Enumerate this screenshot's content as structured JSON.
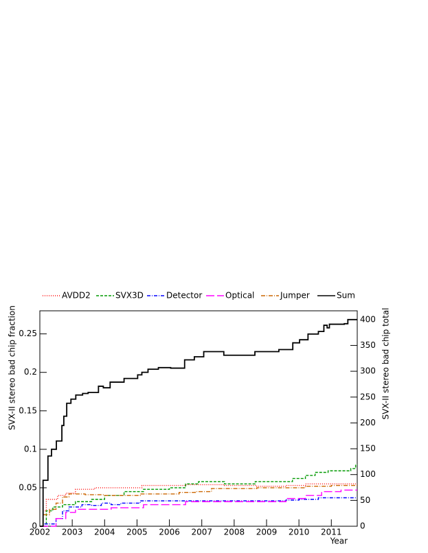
{
  "chart_data": {
    "type": "step",
    "xlabel": "Year",
    "ylabel": "SVX-II stereo bad chip fraction",
    "y2label": "SVX-II stereo bad chip total",
    "xlim": [
      2002,
      2011.8
    ],
    "xticks": [
      2002,
      2003,
      2004,
      2005,
      2006,
      2007,
      2008,
      2009,
      2010,
      2011
    ],
    "ylim": [
      0,
      0.28
    ],
    "yticks": [
      0,
      0.05,
      0.1,
      0.15,
      0.2,
      0.25
    ],
    "y2lim": [
      0,
      417
    ],
    "y2ticks": [
      0,
      50,
      100,
      150,
      200,
      250,
      300,
      350,
      400
    ],
    "series": [
      {
        "name": "AVDD2",
        "color": "#ff0000",
        "dash": "1,2",
        "x": [
          2002,
          2002.1,
          2002.2,
          2002.55,
          2002.8,
          2003.1,
          2003.7,
          2005.15,
          2006.5,
          2007.7,
          2008.7,
          2009.6,
          2010.2,
          2011.8
        ],
        "values": [
          0,
          0.02,
          0.035,
          0.04,
          0.043,
          0.048,
          0.05,
          0.053,
          0.054,
          0.053,
          0.052,
          0.053,
          0.055,
          0.055
        ]
      },
      {
        "name": "SVX3D",
        "color": "#009900",
        "dash": "4,2",
        "x": [
          2002,
          2002.2,
          2002.4,
          2002.7,
          2003.1,
          2003.6,
          2004.0,
          2004.6,
          2005.2,
          2006.0,
          2006.5,
          2006.9,
          2007.7,
          2008.65,
          2009.8,
          2010.2,
          2010.5,
          2010.9,
          2011.6,
          2011.75,
          2011.8
        ],
        "values": [
          0,
          0.02,
          0.025,
          0.028,
          0.032,
          0.035,
          0.04,
          0.045,
          0.048,
          0.05,
          0.055,
          0.058,
          0.055,
          0.058,
          0.062,
          0.066,
          0.07,
          0.072,
          0.075,
          0.08,
          0.08
        ]
      },
      {
        "name": "Detector",
        "color": "#0000ff",
        "dash": "5,2,1,2",
        "x": [
          2002,
          2002.1,
          2002.5,
          2002.7,
          2002.9,
          2003.3,
          2003.6,
          2003.9,
          2004.2,
          2004.5,
          2005.1,
          2007.0,
          2009.6,
          2010.0,
          2010.6,
          2011.8
        ],
        "values": [
          0,
          0.003,
          0.01,
          0.02,
          0.025,
          0.028,
          0.027,
          0.03,
          0.028,
          0.03,
          0.033,
          0.033,
          0.034,
          0.035,
          0.037,
          0.037
        ]
      },
      {
        "name": "Optical",
        "color": "#ff00ff",
        "dash": "12,4",
        "x": [
          2002,
          2002.5,
          2002.8,
          2003.1,
          2004.2,
          2005.2,
          2006.5,
          2008.0,
          2009.6,
          2010.2,
          2010.7,
          2011.3,
          2011.8
        ],
        "values": [
          0,
          0.01,
          0.018,
          0.022,
          0.024,
          0.028,
          0.032,
          0.032,
          0.036,
          0.04,
          0.045,
          0.047,
          0.047
        ]
      },
      {
        "name": "Jumper",
        "color": "#cc6600",
        "dash": "6,2,1,2",
        "x": [
          2002,
          2002.1,
          2002.3,
          2002.5,
          2002.7,
          2002.9,
          2003.4,
          2004.0,
          2005.1,
          2006.3,
          2006.8,
          2007.3,
          2008.7,
          2010.2,
          2011.0,
          2011.8
        ],
        "values": [
          0,
          0.015,
          0.022,
          0.03,
          0.038,
          0.042,
          0.041,
          0.04,
          0.042,
          0.044,
          0.045,
          0.049,
          0.05,
          0.052,
          0.053,
          0.053
        ]
      },
      {
        "name": "Sum",
        "color": "#000000",
        "dash": "",
        "axis": "y2",
        "x": [
          2002,
          2002.1,
          2002.25,
          2002.36,
          2002.51,
          2002.68,
          2002.74,
          2002.83,
          2002.96,
          2003.11,
          2003.32,
          2003.49,
          2003.81,
          2003.96,
          2004.17,
          2004.6,
          2005.02,
          2005.15,
          2005.34,
          2005.66,
          2006.04,
          2006.47,
          2006.77,
          2007.06,
          2007.68,
          2008.64,
          2009.38,
          2009.81,
          2010.02,
          2010.28,
          2010.6,
          2010.77,
          2010.87,
          2010.94,
          2011.4,
          2011.51,
          2011.8
        ],
        "values": [
          0,
          89,
          136,
          149,
          165,
          195,
          213,
          238,
          246,
          254,
          257,
          259,
          271,
          268,
          279,
          286,
          293,
          298,
          304,
          307,
          306,
          322,
          328,
          338,
          331,
          338,
          342,
          355,
          361,
          372,
          377,
          389,
          384,
          391,
          392,
          400,
          400
        ]
      }
    ]
  }
}
